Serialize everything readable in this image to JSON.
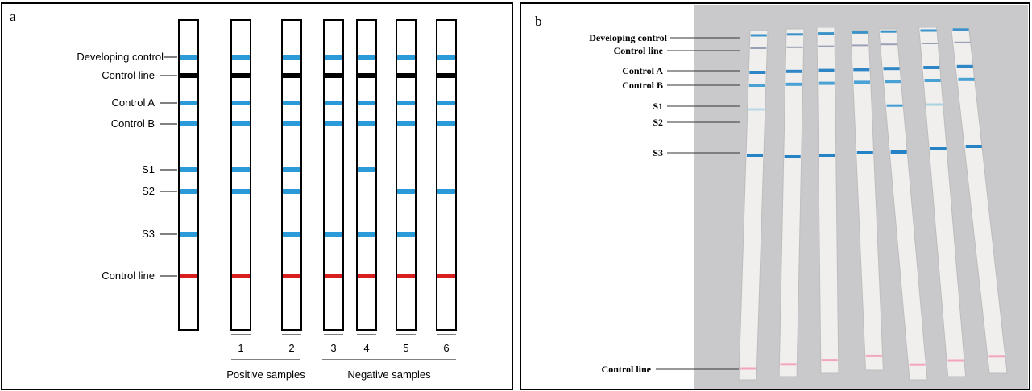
{
  "panel_a": {
    "letter": "a",
    "band_labels": [
      "Developing control",
      "Control line",
      "Control A",
      "Control B",
      "S1",
      "S2",
      "S3",
      "Control line"
    ],
    "strip_numbers": [
      "1",
      "2",
      "3",
      "4",
      "5",
      "6"
    ],
    "groups": [
      "Positive samples",
      "Negative samples"
    ]
  },
  "panel_b": {
    "letter": "b",
    "band_labels": [
      "Developing control",
      "Control line",
      "Control A",
      "Control B",
      "S1",
      "S2",
      "S3",
      "Control line"
    ]
  }
}
